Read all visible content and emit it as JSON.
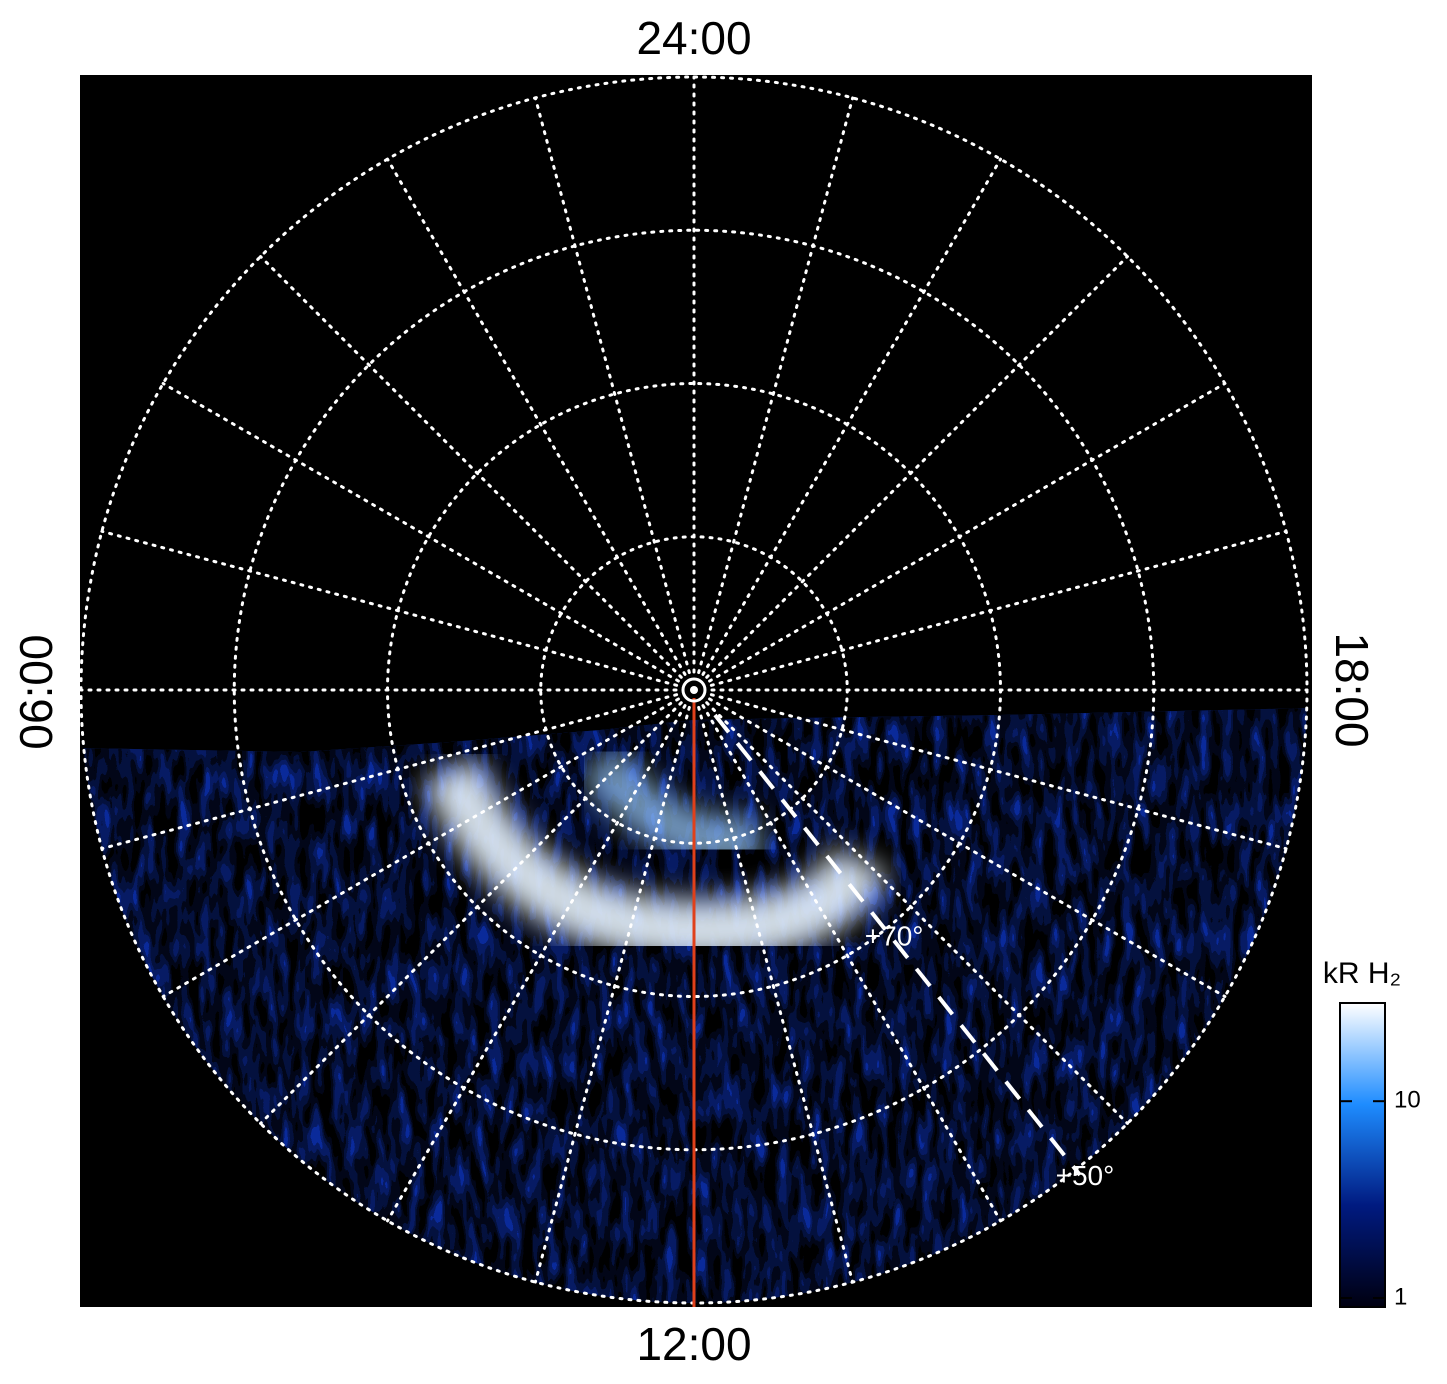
{
  "chart_data": {
    "type": "polar-image",
    "local_time_labels": {
      "top": "24:00",
      "bottom": "12:00",
      "left": "06:00",
      "right": "18:00"
    },
    "rlim": [
      90,
      50
    ],
    "rticks": [
      80,
      70,
      60,
      50
    ],
    "latitude_labels": [
      {
        "text": "+70°",
        "value": 70
      },
      {
        "text": "+50°",
        "value": 50
      }
    ],
    "colorbar": {
      "label": "kR H₂",
      "log": true,
      "lim": [
        1,
        30
      ],
      "ticks": [
        1,
        10
      ],
      "colors": [
        "#000010",
        "#001a80",
        "#1e8cff",
        "#ffffff"
      ]
    }
  }
}
